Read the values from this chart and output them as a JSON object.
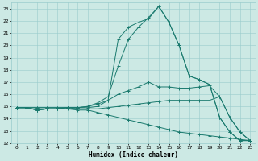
{
  "xlabel": "Humidex (Indice chaleur)",
  "background_color": "#cce9e4",
  "grid_color": "#99cccc",
  "line_color": "#1a7a6e",
  "xlim": [
    -0.5,
    23.5
  ],
  "ylim": [
    12,
    23.5
  ],
  "yticks": [
    12,
    13,
    14,
    15,
    16,
    17,
    18,
    19,
    20,
    21,
    22,
    23
  ],
  "xticks": [
    0,
    1,
    2,
    3,
    4,
    5,
    6,
    7,
    8,
    9,
    10,
    11,
    12,
    13,
    14,
    15,
    16,
    17,
    18,
    19,
    20,
    21,
    22,
    23
  ],
  "lines": [
    {
      "x": [
        0,
        1,
        2,
        3,
        4,
        5,
        6,
        7,
        8,
        9,
        10,
        11,
        12,
        13,
        14,
        15,
        16,
        17,
        18,
        19,
        20,
        21,
        22,
        23
      ],
      "y": [
        14.9,
        14.9,
        14.9,
        14.9,
        14.9,
        14.9,
        14.9,
        14.9,
        15.0,
        15.5,
        20.5,
        21.5,
        21.9,
        22.2,
        23.2,
        21.9,
        20.0,
        17.5,
        17.2,
        16.8,
        14.1,
        12.9,
        12.2,
        12.2
      ]
    },
    {
      "x": [
        0,
        1,
        2,
        3,
        4,
        5,
        6,
        7,
        8,
        9,
        10,
        11,
        12,
        13,
        14,
        15,
        16,
        17,
        18,
        19,
        20,
        21,
        22,
        23
      ],
      "y": [
        14.9,
        14.9,
        14.9,
        14.9,
        14.9,
        14.9,
        14.9,
        15.0,
        15.3,
        15.8,
        18.3,
        20.5,
        21.5,
        22.3,
        23.2,
        21.9,
        20.0,
        17.5,
        17.2,
        16.8,
        14.1,
        12.9,
        12.2,
        12.2
      ]
    },
    {
      "x": [
        0,
        1,
        2,
        3,
        4,
        5,
        6,
        7,
        8,
        9,
        10,
        11,
        12,
        13,
        14,
        15,
        16,
        17,
        18,
        19,
        20,
        21,
        22,
        23
      ],
      "y": [
        14.9,
        14.9,
        14.7,
        14.8,
        14.8,
        14.9,
        14.9,
        15.0,
        15.2,
        15.5,
        16.0,
        16.3,
        16.6,
        17.0,
        16.6,
        16.6,
        16.5,
        16.5,
        16.6,
        16.7,
        15.8,
        14.1,
        12.9,
        12.2
      ]
    },
    {
      "x": [
        0,
        1,
        2,
        3,
        4,
        5,
        6,
        7,
        8,
        9,
        10,
        11,
        12,
        13,
        14,
        15,
        16,
        17,
        18,
        19,
        20,
        21,
        22,
        23
      ],
      "y": [
        14.9,
        14.9,
        14.7,
        14.8,
        14.8,
        14.9,
        14.8,
        14.8,
        14.8,
        14.9,
        15.0,
        15.1,
        15.2,
        15.3,
        15.4,
        15.5,
        15.5,
        15.5,
        15.5,
        15.5,
        15.8,
        14.1,
        12.9,
        12.2
      ]
    },
    {
      "x": [
        0,
        1,
        2,
        3,
        4,
        5,
        6,
        7,
        8,
        9,
        10,
        11,
        12,
        13,
        14,
        15,
        16,
        17,
        18,
        19,
        20,
        21,
        22,
        23
      ],
      "y": [
        14.9,
        14.9,
        14.7,
        14.8,
        14.8,
        14.8,
        14.7,
        14.7,
        14.5,
        14.3,
        14.1,
        13.9,
        13.7,
        13.5,
        13.3,
        13.1,
        12.9,
        12.8,
        12.7,
        12.6,
        12.5,
        12.4,
        12.3,
        12.2
      ]
    }
  ]
}
